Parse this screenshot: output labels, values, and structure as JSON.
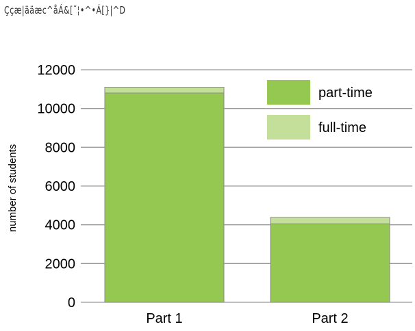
{
  "header": {
    "text": "Ççæ|ääæc^åÁ&[˘¦•^•Á[}|^D"
  },
  "chart_data": {
    "type": "bar",
    "stacked": true,
    "categories": [
      "Part 1",
      "Part 2"
    ],
    "series": [
      {
        "name": "part-time",
        "values": [
          10800,
          4050
        ],
        "color": "#95c850"
      },
      {
        "name": "full-time",
        "values": [
          300,
          330
        ],
        "color": "#c3df9a"
      }
    ],
    "title": "",
    "xlabel": "",
    "ylabel": "number of students",
    "ylim": [
      0,
      12000
    ],
    "yticks": [
      0,
      2000,
      4000,
      6000,
      8000,
      10000,
      12000
    ],
    "grid": true,
    "legend_position": "top-right",
    "colors": {
      "gridline": "#9a9a9a",
      "bar_border": "#8a8a8a"
    }
  }
}
